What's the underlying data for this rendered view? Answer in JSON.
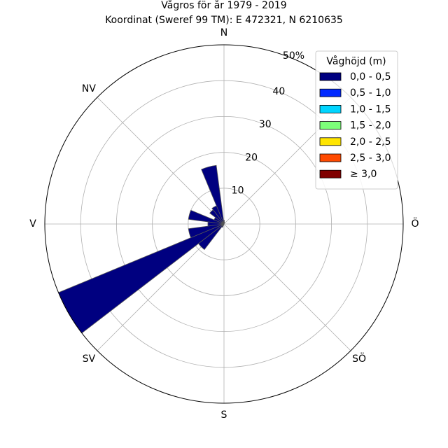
{
  "chart_data": {
    "type": "windrose",
    "title": "Vågros för år 1979 - 2019",
    "subtitle": "Koordinat (Sweref 99 TM): E 472321, N 6210635",
    "direction_labels": [
      {
        "label": "N",
        "angle_deg": 0
      },
      {
        "label": "NV",
        "angle_deg": 315
      },
      {
        "label": "V",
        "angle_deg": 270
      },
      {
        "label": "SV",
        "angle_deg": 225
      },
      {
        "label": "S",
        "angle_deg": 180
      },
      {
        "label": "SÖ",
        "angle_deg": 135
      },
      {
        "label": "Ö",
        "angle_deg": 90
      }
    ],
    "r_ticks": [
      10,
      20,
      30,
      40
    ],
    "r_max": 50,
    "r_max_label": "50%",
    "sector_width_deg": 15,
    "grid": true,
    "legend_placement": "top-right",
    "legend_title": "Våghöjd (m)",
    "series": [
      {
        "name": "0,0 - 0,5",
        "color": "#000080"
      },
      {
        "name": "0,5 - 1,0",
        "color": "#0029ff"
      },
      {
        "name": "1,0 - 1,5",
        "color": "#00d5ff"
      },
      {
        "name": "1,5 - 2,0",
        "color": "#7dff7a"
      },
      {
        "name": "2,0 - 2,5",
        "color": "#ffe500"
      },
      {
        "name": "2,5 - 3,0",
        "color": "#ff4a00"
      },
      {
        "name": "≥ 3,0",
        "color": "#800000"
      }
    ],
    "sectors": [
      {
        "direction_deg": 345,
        "value": 16.5
      },
      {
        "direction_deg": 330,
        "value": 5.5
      },
      {
        "direction_deg": 315,
        "value": 5.0
      },
      {
        "direction_deg": 300,
        "value": 3.0
      },
      {
        "direction_deg": 285,
        "value": 10.0
      },
      {
        "direction_deg": 270,
        "value": 4.5
      },
      {
        "direction_deg": 255,
        "value": 10.0
      },
      {
        "direction_deg": 240,
        "value": 50.0
      },
      {
        "direction_deg": 225,
        "value": 9.0
      },
      {
        "direction_deg": 210,
        "value": 1.0
      },
      {
        "direction_deg": 0,
        "value": 1.0
      },
      {
        "direction_deg": 15,
        "value": 0.5
      }
    ]
  }
}
